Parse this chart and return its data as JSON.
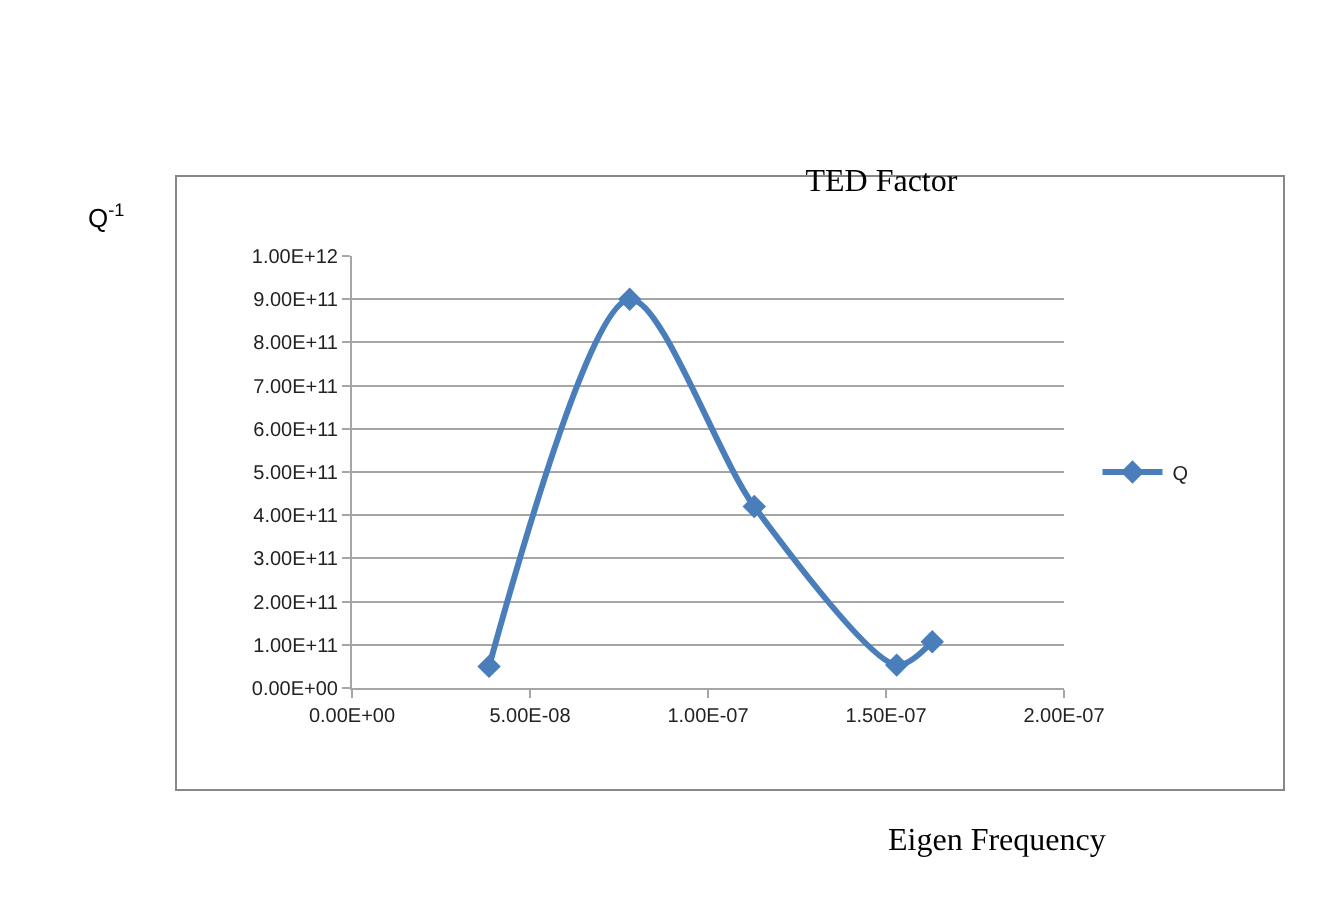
{
  "chart_data": {
    "type": "line",
    "title": "TED Factor",
    "xlabel": "Eigen Frequency",
    "ylabel": "Q$^{-1}$",
    "x": [
      3.85e-08,
      7.8e-08,
      1.13e-07,
      1.53e-07,
      1.63e-07
    ],
    "series": [
      {
        "name": "Q",
        "color": "#4a7ebb",
        "values": [
          50000000000.0,
          900000000000.0,
          420000000000.0,
          53000000000.0,
          107000000000.0
        ]
      }
    ],
    "xlim": [
      0,
      2e-07
    ],
    "xticks": [
      {
        "value": 0,
        "label": "0.00E+00"
      },
      {
        "value": 5e-08,
        "label": "5.00E-08"
      },
      {
        "value": 1e-07,
        "label": "1.00E-07"
      },
      {
        "value": 1.5e-07,
        "label": "1.50E-07"
      },
      {
        "value": 2e-07,
        "label": "2.00E-07"
      }
    ],
    "ylim": [
      0,
      1000000000000.0
    ],
    "yticks": [
      {
        "value": 0,
        "label": "0.00E+00"
      },
      {
        "value": 100000000000.0,
        "label": "1.00E+11"
      },
      {
        "value": 200000000000.0,
        "label": "2.00E+11"
      },
      {
        "value": 300000000000.0,
        "label": "3.00E+11"
      },
      {
        "value": 400000000000.0,
        "label": "4.00E+11"
      },
      {
        "value": 500000000000.0,
        "label": "5.00E+11"
      },
      {
        "value": 600000000000.0,
        "label": "6.00E+11"
      },
      {
        "value": 700000000000.0,
        "label": "7.00E+11"
      },
      {
        "value": 800000000000.0,
        "label": "8.00E+11"
      },
      {
        "value": 900000000000.0,
        "label": "9.00E+11"
      },
      {
        "value": 1000000000000.0,
        "label": "1.00E+12"
      }
    ],
    "grid": "y",
    "legend": "right",
    "marker": "diamond",
    "line_style": "solid"
  }
}
